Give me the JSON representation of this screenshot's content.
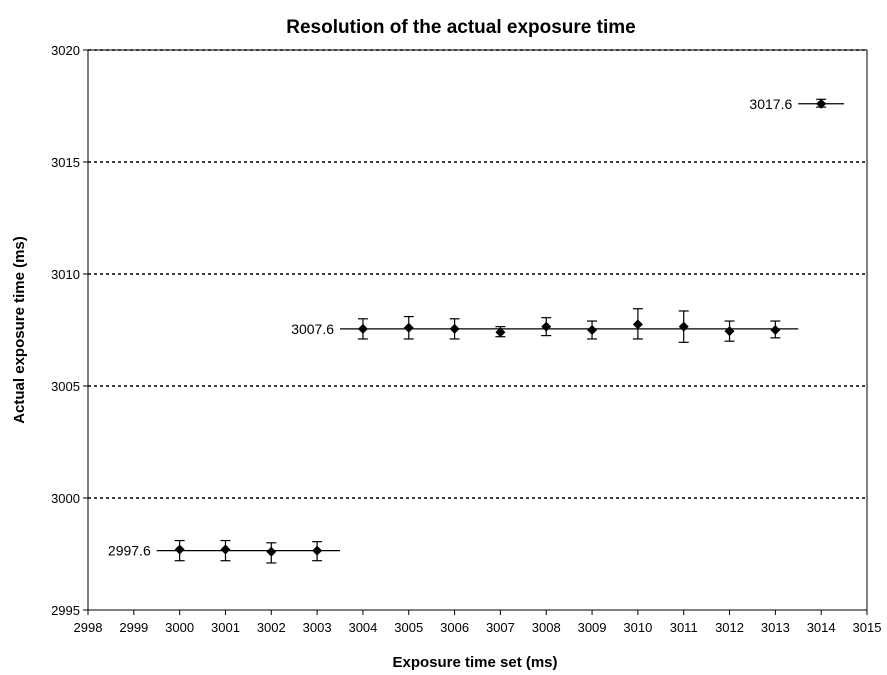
{
  "chart_data": {
    "type": "scatter",
    "title": "Resolution of the actual exposure time",
    "xlabel": "Exposure time set (ms)",
    "ylabel": "Actual exposure time (ms)",
    "xlim": [
      2998,
      3015
    ],
    "ylim": [
      2995,
      3020
    ],
    "xticks": [
      2998,
      2999,
      3000,
      3001,
      3002,
      3003,
      3004,
      3005,
      3006,
      3007,
      3008,
      3009,
      3010,
      3011,
      3012,
      3013,
      3014,
      3015
    ],
    "yticks": [
      2995,
      3000,
      3005,
      3010,
      3015,
      3020
    ],
    "grid": "horizontal dashed",
    "legend": "none",
    "series": [
      {
        "marker": "diamond",
        "color": "#000000",
        "points": [
          {
            "x": 3000,
            "y": 2997.7,
            "err": [
              2997.2,
              2998.1
            ]
          },
          {
            "x": 3001,
            "y": 2997.7,
            "err": [
              2997.2,
              2998.1
            ]
          },
          {
            "x": 3002,
            "y": 2997.6,
            "err": [
              2997.1,
              2998.0
            ]
          },
          {
            "x": 3003,
            "y": 2997.65,
            "err": [
              2997.2,
              2998.05
            ]
          },
          {
            "x": 3004,
            "y": 3007.55,
            "err": [
              3007.1,
              3008.0
            ]
          },
          {
            "x": 3005,
            "y": 3007.6,
            "err": [
              3007.1,
              3008.1
            ]
          },
          {
            "x": 3006,
            "y": 3007.55,
            "err": [
              3007.1,
              3008.0
            ]
          },
          {
            "x": 3007,
            "y": 3007.4,
            "err": [
              3007.2,
              3007.65
            ]
          },
          {
            "x": 3008,
            "y": 3007.65,
            "err": [
              3007.25,
              3008.05
            ]
          },
          {
            "x": 3009,
            "y": 3007.5,
            "err": [
              3007.1,
              3007.9
            ]
          },
          {
            "x": 3010,
            "y": 3007.75,
            "err": [
              3007.1,
              3008.45
            ]
          },
          {
            "x": 3011,
            "y": 3007.65,
            "err": [
              3006.95,
              3008.35
            ]
          },
          {
            "x": 3012,
            "y": 3007.45,
            "err": [
              3007.0,
              3007.9
            ]
          },
          {
            "x": 3013,
            "y": 3007.5,
            "err": [
              3007.15,
              3007.9
            ]
          },
          {
            "x": 3014,
            "y": 3017.6,
            "err": [
              3017.45,
              3017.8
            ]
          }
        ]
      }
    ],
    "reference_lines": [
      {
        "label": "2997.6",
        "y": 2997.65,
        "x_from": 2999.5,
        "x_to": 3003.5
      },
      {
        "label": "3007.6",
        "y": 3007.55,
        "x_from": 3003.5,
        "x_to": 3013.5
      },
      {
        "label": "3017.6",
        "y": 3017.6,
        "x_from": 3013.5,
        "x_to": 3014.5
      }
    ]
  }
}
